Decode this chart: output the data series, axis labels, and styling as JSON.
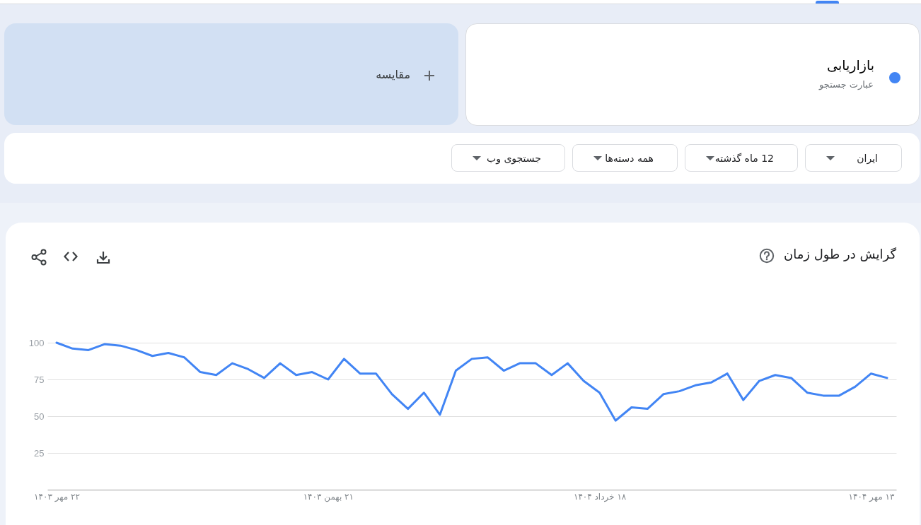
{
  "chart_data": {
    "type": "line",
    "title": "گرایش در طول زمان",
    "categories": [
      "۲۲ مهر ۱۴۰۳",
      null,
      null,
      null,
      null,
      null,
      null,
      null,
      null,
      null,
      null,
      null,
      null,
      null,
      null,
      null,
      null,
      "۲۱ بهمن ۱۴۰۳",
      null,
      null,
      null,
      null,
      null,
      null,
      null,
      null,
      null,
      null,
      null,
      null,
      null,
      null,
      null,
      null,
      "۱۸ خرداد ۱۴۰۴",
      null,
      null,
      null,
      null,
      null,
      null,
      null,
      null,
      null,
      null,
      null,
      null,
      null,
      null,
      null,
      null,
      "۱۳ مهر ۱۴۰۴",
      null
    ],
    "series": [
      {
        "name": "بازاریابی",
        "color": "#4285f4",
        "values": [
          100,
          96,
          95,
          99,
          98,
          95,
          91,
          93,
          90,
          80,
          78,
          86,
          82,
          76,
          86,
          78,
          80,
          75,
          89,
          79,
          79,
          65,
          55,
          66,
          51,
          81,
          89,
          90,
          81,
          86,
          86,
          78,
          86,
          74,
          66,
          47,
          56,
          55,
          65,
          67,
          71,
          73,
          79,
          61,
          74,
          78,
          76,
          66,
          64,
          64,
          70,
          79,
          76
        ]
      }
    ],
    "ylim": [
      0,
      100
    ],
    "yticks": [
      25,
      50,
      75,
      100
    ],
    "grid": "y",
    "legend": "top right",
    "annotations": [
      "عبارت جستجو",
      "مقایسه",
      "ایران",
      "12 ماه گذشته",
      "همه دسته‌ها",
      "جستجوی وب"
    ]
  }
}
